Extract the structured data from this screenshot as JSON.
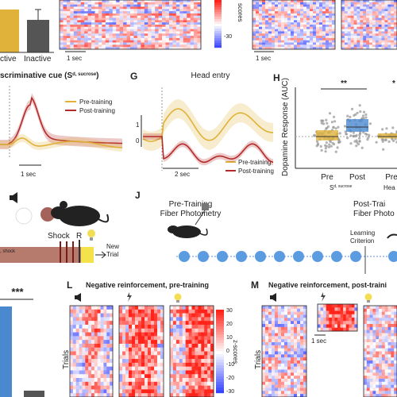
{
  "panel_e": {
    "bar_labels": [
      "ctive",
      "Inactive"
    ],
    "time_scale_left": "1 sec",
    "time_scale_right": "1 sec",
    "colorbar_label": "scores",
    "colorbar_tick": "-30"
  },
  "panel_f": {
    "title_prefix": "scriminative cue (S",
    "title_sup": "d, sucrose",
    "title_suffix": ")",
    "legend": [
      "Pre-training",
      "Post-training"
    ],
    "time_scale": "1 sec"
  },
  "panel_g": {
    "letter": "G",
    "title": "Head entry",
    "yticks": [
      "1",
      "0"
    ],
    "legend": [
      "Pre-training",
      "Post-training"
    ],
    "time_scale": "2 sec"
  },
  "panel_h": {
    "letter": "H",
    "ylabel": "Dopamine Response (AUC)",
    "significance": [
      "**",
      "*"
    ],
    "groups": [
      "Pre",
      "Post",
      "Pre"
    ],
    "group_label_prefix": "S",
    "group_label_sup": "d, sucrose",
    "group_label_right": "Hea"
  },
  "panel_i": {
    "cue_text": ", shock",
    "events": [
      "Shock",
      "R"
    ],
    "new_trial": [
      "New",
      "Trial"
    ]
  },
  "panel_j": {
    "letter": "J",
    "pre_label": [
      "Pre-Training",
      "Fiber Photometry"
    ],
    "post_label": [
      "Post-Trai",
      "Fiber Photo"
    ],
    "criterion": [
      "Learning",
      "Criterion"
    ]
  },
  "panel_k": {
    "significance": "***"
  },
  "panel_l": {
    "letter": "L",
    "title": "Negative reinforcement, pre-training",
    "ylabel": "Trials",
    "colorbar_ticks": [
      "30",
      "20",
      "10",
      "0",
      "-10",
      "-20",
      "-30"
    ],
    "colorbar_label": "z-scores"
  },
  "panel_m": {
    "letter": "M",
    "title": "Negative reinforcement, post-traini",
    "ylabel": "Trials",
    "time_scale": "1 sec"
  }
}
